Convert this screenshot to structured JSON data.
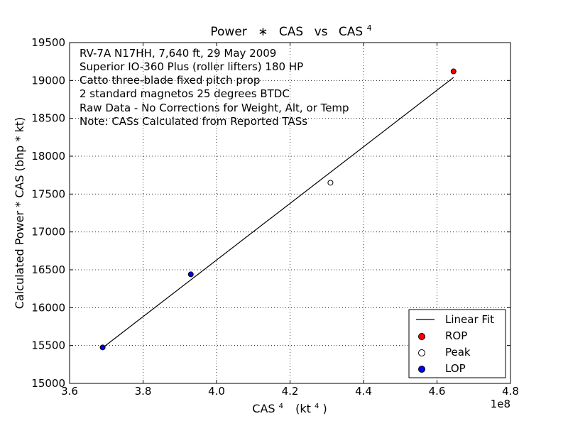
{
  "chart_data": {
    "type": "scatter",
    "title_parts": [
      "Power",
      "∗",
      "CAS",
      "vs",
      "CAS",
      "4"
    ],
    "xlabel_parts": [
      "CAS",
      "4",
      "(kt",
      "4",
      ")"
    ],
    "ylabel": "Calculated Power * CAS (bhp * kt)",
    "x_offset_label": "1e8",
    "xlim": [
      3.6,
      4.8
    ],
    "ylim": [
      15000,
      19500
    ],
    "x_ticks": [
      3.6,
      3.8,
      4.0,
      4.2,
      4.4,
      4.6,
      4.8
    ],
    "x_tick_labels": [
      "3.6",
      "3.8",
      "4.0",
      "4.2",
      "4.4",
      "4.6",
      "4.8"
    ],
    "y_ticks": [
      15000,
      15500,
      16000,
      16500,
      17000,
      17500,
      18000,
      18500,
      19000,
      19500
    ],
    "y_tick_labels": [
      "15000",
      "15500",
      "16000",
      "16500",
      "17000",
      "17500",
      "18000",
      "18500",
      "19000",
      "19500"
    ],
    "grid": true,
    "legend_position": "bottom-right",
    "annotation_lines": [
      "RV-7A N17HH, 7,640 ft, 29 May 2009",
      "Superior IO-360 Plus (roller lifters) 180 HP",
      "Catto three-blade fixed pitch prop",
      "2 standard magnetos 25 degrees BTDC",
      "Raw Data - No Corrections for Weight, Alt, or Temp",
      "Note: CASs Calculated from Reported TASs"
    ],
    "fit_line": {
      "name": "Linear Fit",
      "color": "#000000",
      "x": [
        3.69,
        4.645
      ],
      "y": [
        15470,
        19040
      ]
    },
    "series": [
      {
        "name": "ROP",
        "color": "#ff0000",
        "points": [
          {
            "x": 4.645,
            "y": 19120
          }
        ]
      },
      {
        "name": "Peak",
        "color": "#ffffff",
        "points": [
          {
            "x": 4.31,
            "y": 17650
          }
        ]
      },
      {
        "name": "LOP",
        "color": "#0000ff",
        "points": [
          {
            "x": 3.69,
            "y": 15475
          },
          {
            "x": 3.93,
            "y": 16440
          }
        ]
      }
    ]
  }
}
